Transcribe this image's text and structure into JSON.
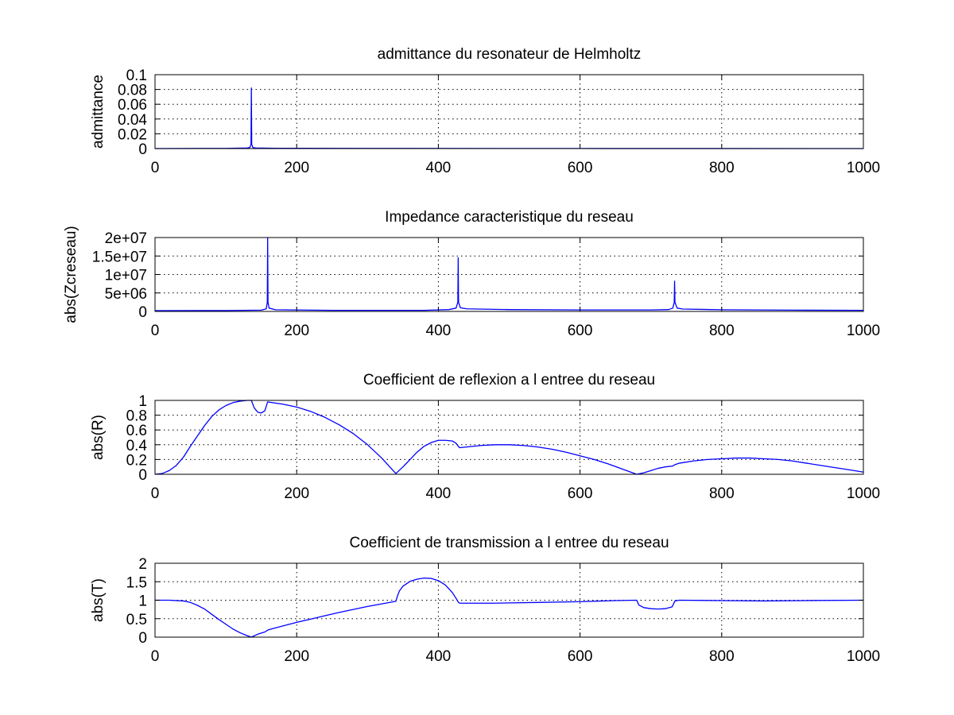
{
  "figure": {
    "background": "#ffffff",
    "line_color": "#0000ff"
  },
  "chart_data": [
    {
      "type": "line",
      "title": "admittance du resonateur de Helmholtz",
      "xlabel": "",
      "ylabel": "admittance",
      "xlim": [
        0,
        1000
      ],
      "ylim": [
        0,
        0.1
      ],
      "x_ticks": [
        0,
        200,
        400,
        600,
        800,
        1000
      ],
      "x_tick_labels": [
        "0",
        "200",
        "400",
        "600",
        "800",
        "1000"
      ],
      "y_ticks": [
        0,
        0.02,
        0.04,
        0.06,
        0.08,
        0.1
      ],
      "y_tick_labels": [
        "0",
        "0.02",
        "0.04",
        "0.06",
        "0.08",
        "0.1"
      ],
      "grid": true,
      "series": [
        {
          "color": "#0000ff",
          "x": [
            0,
            100,
            130,
            134,
            135.5,
            136,
            136.5,
            138,
            142,
            170,
            300,
            600,
            1000
          ],
          "y": [
            0,
            0.0003,
            0.0008,
            0.0015,
            0.006,
            0.082,
            0.006,
            0.0015,
            0.0008,
            0.0004,
            0.0002,
            0.0001,
            0
          ]
        }
      ]
    },
    {
      "type": "line",
      "title": "Impedance caracteristique du reseau",
      "xlabel": "",
      "ylabel": "abs(Zcreseau)",
      "xlim": [
        0,
        1000
      ],
      "ylim": [
        0,
        20000000
      ],
      "x_ticks": [
        0,
        200,
        400,
        600,
        800,
        1000
      ],
      "x_tick_labels": [
        "0",
        "200",
        "400",
        "600",
        "800",
        "1000"
      ],
      "y_ticks": [
        0,
        5000000,
        10000000,
        15000000,
        20000000
      ],
      "y_tick_labels": [
        "0",
        "5e+06",
        "1e+07",
        "1.5e+07",
        "2e+07"
      ],
      "grid": true,
      "series": [
        {
          "color": "#0000ff",
          "x": [
            0,
            100,
            150,
            157,
            158.5,
            159,
            159.5,
            161,
            170,
            250,
            380,
            415,
            425,
            427.5,
            428,
            428.5,
            431,
            440,
            500,
            600,
            700,
            725,
            731,
            733,
            733.5,
            734,
            737,
            745,
            800,
            900,
            1000
          ],
          "y": [
            200000,
            250000,
            350000,
            700000,
            2500000,
            20000000,
            2500000,
            900000,
            450000,
            300000,
            300000,
            500000,
            900000,
            2500000,
            14500000,
            2500000,
            1000000,
            700000,
            500000,
            400000,
            400000,
            500000,
            900000,
            2500000,
            8200000,
            2500000,
            900000,
            650000,
            450000,
            350000,
            300000
          ]
        }
      ]
    },
    {
      "type": "line",
      "title": "Coefficient de reflexion a l entree du reseau",
      "xlabel": "",
      "ylabel": "abs(R)",
      "xlim": [
        0,
        1000
      ],
      "ylim": [
        0,
        1
      ],
      "x_ticks": [
        0,
        200,
        400,
        600,
        800,
        1000
      ],
      "x_tick_labels": [
        "0",
        "200",
        "400",
        "600",
        "800",
        "1000"
      ],
      "y_ticks": [
        0,
        0.2,
        0.4,
        0.6,
        0.8,
        1
      ],
      "y_tick_labels": [
        "0",
        "0.2",
        "0.4",
        "0.6",
        "0.8",
        "1"
      ],
      "grid": true,
      "series": [
        {
          "color": "#0000ff",
          "x": [
            0,
            10,
            20,
            30,
            40,
            50,
            60,
            70,
            80,
            90,
            100,
            110,
            120,
            130,
            136,
            140,
            145,
            150,
            155,
            159,
            165,
            180,
            200,
            220,
            240,
            260,
            280,
            300,
            320,
            340,
            350,
            360,
            370,
            380,
            390,
            400,
            410,
            420,
            425,
            428,
            430,
            440,
            460,
            480,
            500,
            520,
            540,
            560,
            580,
            600,
            620,
            640,
            660,
            680,
            690,
            700,
            710,
            720,
            730,
            734,
            740,
            760,
            780,
            800,
            820,
            840,
            860,
            880,
            900,
            920,
            940,
            960,
            980,
            1000
          ],
          "y": [
            0,
            0.01,
            0.05,
            0.12,
            0.23,
            0.38,
            0.52,
            0.66,
            0.78,
            0.87,
            0.93,
            0.97,
            0.99,
            1.0,
            1.0,
            0.9,
            0.84,
            0.83,
            0.86,
            0.98,
            0.97,
            0.95,
            0.91,
            0.85,
            0.77,
            0.67,
            0.55,
            0.4,
            0.22,
            0.01,
            0.1,
            0.2,
            0.3,
            0.38,
            0.43,
            0.46,
            0.46,
            0.45,
            0.42,
            0.38,
            0.36,
            0.37,
            0.39,
            0.4,
            0.4,
            0.39,
            0.37,
            0.34,
            0.3,
            0.25,
            0.2,
            0.14,
            0.07,
            0.0,
            0.02,
            0.05,
            0.08,
            0.1,
            0.11,
            0.13,
            0.15,
            0.18,
            0.2,
            0.21,
            0.22,
            0.22,
            0.21,
            0.2,
            0.18,
            0.15,
            0.12,
            0.09,
            0.06,
            0.03
          ]
        }
      ]
    },
    {
      "type": "line",
      "title": "Coefficient de transmission a l entree du reseau",
      "xlabel": "",
      "ylabel": "abs(T)",
      "xlim": [
        0,
        1000
      ],
      "ylim": [
        0,
        2
      ],
      "x_ticks": [
        0,
        200,
        400,
        600,
        800,
        1000
      ],
      "x_tick_labels": [
        "0",
        "200",
        "400",
        "600",
        "800",
        "1000"
      ],
      "y_ticks": [
        0,
        0.5,
        1,
        1.5,
        2
      ],
      "y_tick_labels": [
        "0",
        "0.5",
        "1",
        "1.5",
        "2"
      ],
      "grid": true,
      "series": [
        {
          "color": "#0000ff",
          "x": [
            0,
            20,
            40,
            50,
            60,
            70,
            80,
            90,
            100,
            110,
            120,
            130,
            136,
            145,
            155,
            160,
            180,
            200,
            220,
            240,
            260,
            280,
            300,
            320,
            340,
            342,
            345,
            350,
            360,
            370,
            380,
            390,
            400,
            410,
            420,
            425,
            428,
            430,
            480,
            540,
            600,
            650,
            680,
            683,
            690,
            700,
            710,
            720,
            730,
            734,
            740,
            800,
            860,
            920,
            1000
          ],
          "y": [
            1.0,
            1.0,
            0.98,
            0.94,
            0.86,
            0.76,
            0.62,
            0.48,
            0.35,
            0.22,
            0.12,
            0.04,
            0.0,
            0.08,
            0.14,
            0.2,
            0.3,
            0.4,
            0.49,
            0.58,
            0.67,
            0.75,
            0.83,
            0.9,
            0.97,
            1.1,
            1.25,
            1.38,
            1.51,
            1.57,
            1.6,
            1.59,
            1.53,
            1.41,
            1.2,
            1.05,
            0.95,
            0.92,
            0.92,
            0.94,
            0.96,
            0.99,
            1.0,
            0.87,
            0.8,
            0.77,
            0.76,
            0.77,
            0.82,
            0.98,
            1.0,
            0.99,
            0.98,
            0.99,
            1.0
          ]
        }
      ]
    }
  ]
}
